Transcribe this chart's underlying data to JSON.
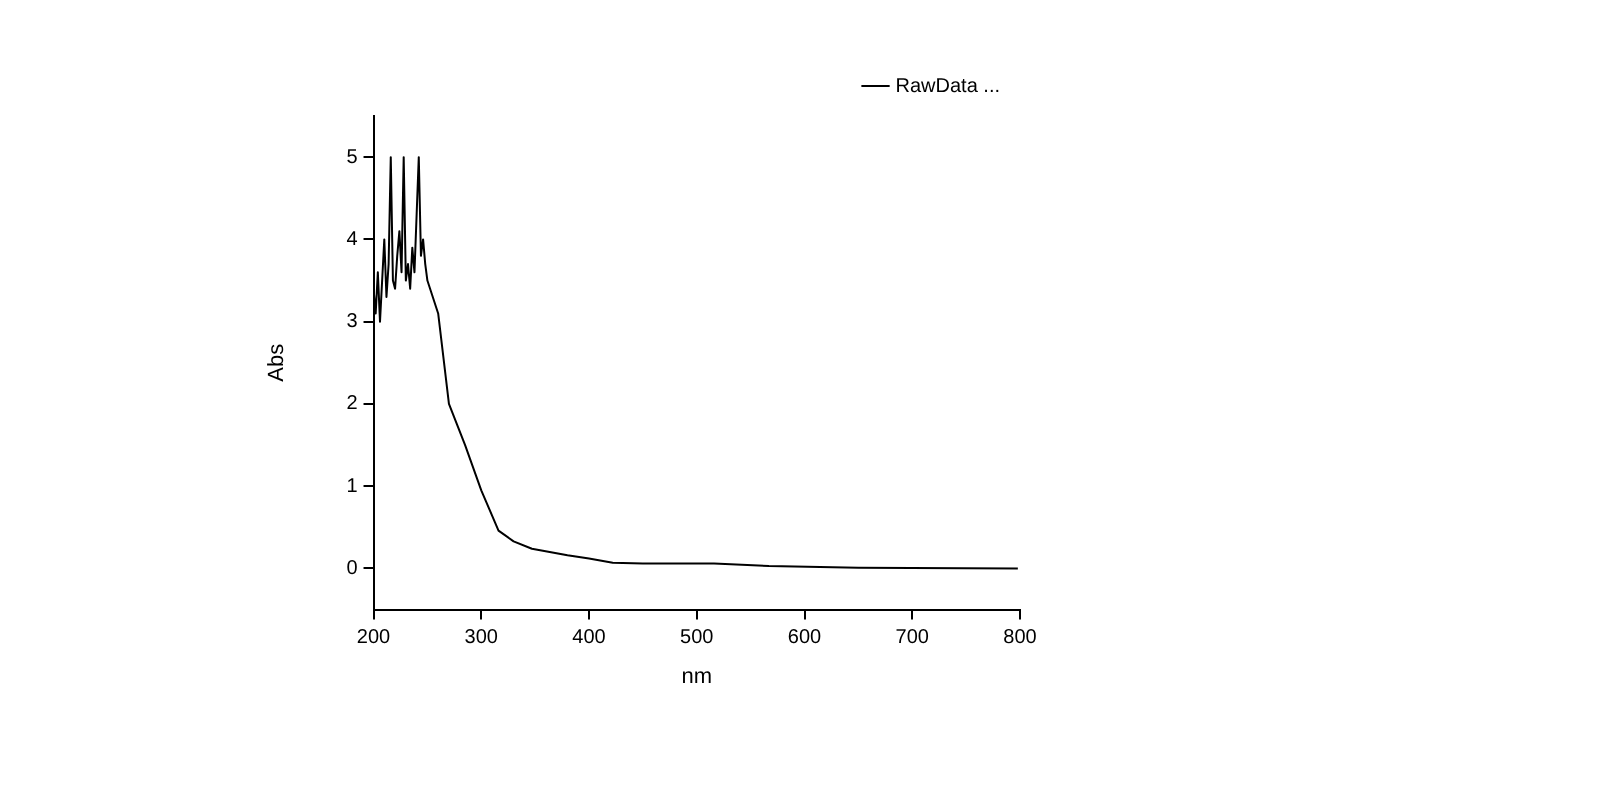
{
  "chart_data": {
    "type": "line",
    "xlabel": "nm",
    "ylabel": "Abs",
    "xlim": [
      200,
      800
    ],
    "ylim": [
      -0.5,
      5.5
    ],
    "xticks": [
      200,
      300,
      400,
      500,
      600,
      700,
      800
    ],
    "yticks": [
      0,
      1,
      2,
      3,
      4,
      5
    ],
    "grid": false,
    "legend": "top right",
    "marker": "none",
    "line_style": "solid",
    "series": [
      {
        "name": "RawData ...",
        "color": "#000000",
        "x": [
          200,
          202,
          204,
          206,
          208,
          210,
          212,
          214,
          216,
          218,
          220,
          222,
          224,
          226,
          228,
          230,
          232,
          234,
          236,
          238,
          240,
          242,
          244,
          246,
          248,
          250,
          260,
          270,
          285,
          300,
          316,
          330,
          347,
          380,
          400,
          422,
          450,
          516,
          567,
          650,
          798
        ],
        "values": [
          3.4,
          3.1,
          3.6,
          3.0,
          3.5,
          4.0,
          3.3,
          3.7,
          5.0,
          3.5,
          3.4,
          3.8,
          4.1,
          3.6,
          5.0,
          3.5,
          3.7,
          3.4,
          3.9,
          3.6,
          4.3,
          5.0,
          3.8,
          4.0,
          3.7,
          3.5,
          3.1,
          2.0,
          1.5,
          0.95,
          0.46,
          0.33,
          0.24,
          0.16,
          0.12,
          0.07,
          0.06,
          0.06,
          0.03,
          0.01,
          0
        ]
      }
    ]
  }
}
